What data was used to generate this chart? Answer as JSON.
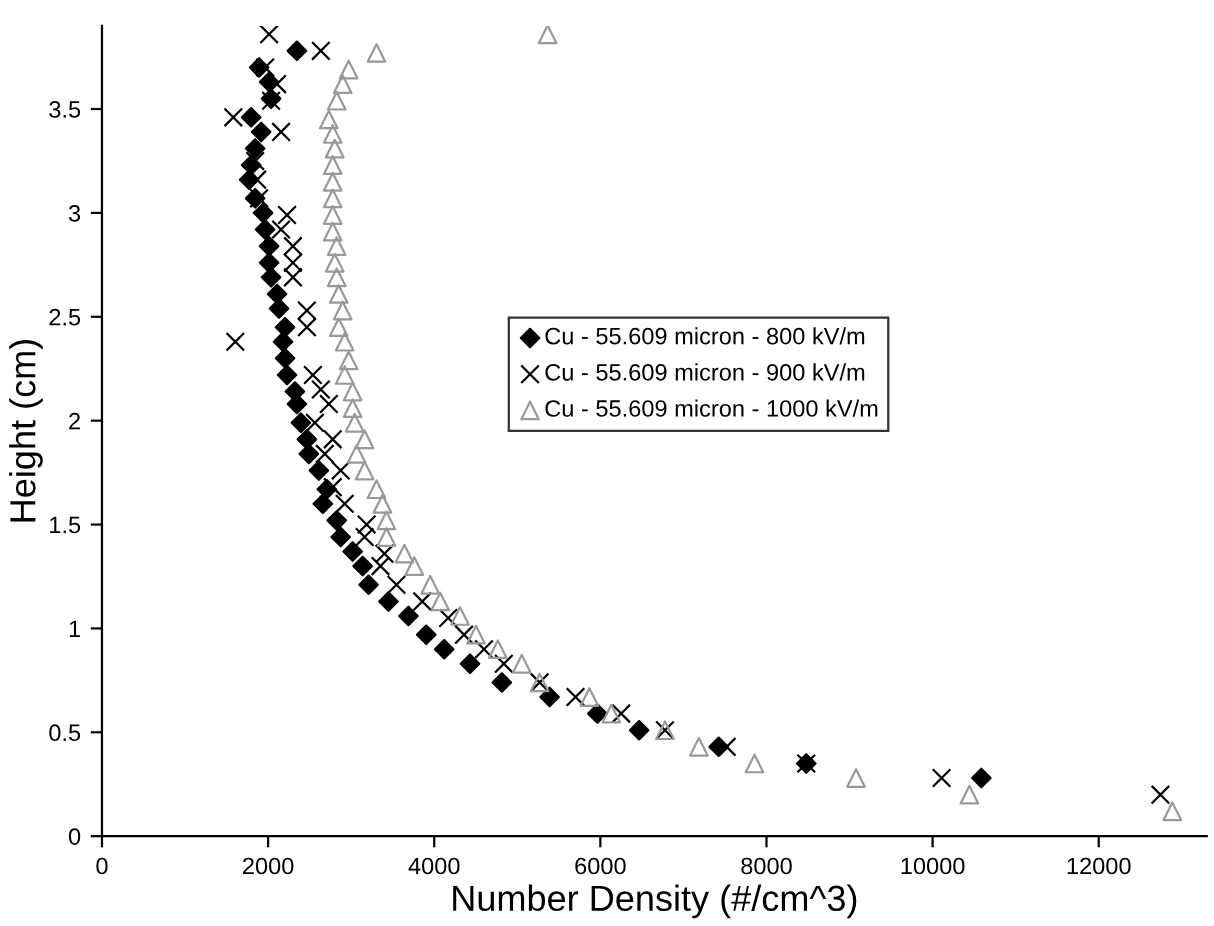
{
  "chart_data": {
    "type": "scatter",
    "xlabel": "Number Density (#/cm^3)",
    "ylabel": "Height (cm)",
    "xlim": [
      0,
      13300
    ],
    "xticks": [
      0,
      2000,
      4000,
      6000,
      8000,
      10000,
      12000
    ],
    "ylim": [
      0,
      3.9
    ],
    "yticks": [
      0,
      0.5,
      1,
      1.5,
      2,
      2.5,
      3,
      3.5
    ],
    "grid": false,
    "legend": "center",
    "series": [
      {
        "name": "Cu - 55.609 micron - 800 kV/m",
        "color": "#000000",
        "marker": "diamond",
        "x": [
          2347,
          1892,
          2012,
          2036,
          1796,
          1916,
          1844,
          1796,
          1772,
          1844,
          1940,
          1964,
          2012,
          2012,
          2036,
          2108,
          2132,
          2204,
          2180,
          2204,
          2228,
          2323,
          2347,
          2395,
          2467,
          2491,
          2611,
          2707,
          2659,
          2826,
          2874,
          3018,
          3138,
          3210,
          3449,
          3689,
          3904,
          4120,
          4431,
          4814,
          5389,
          5964,
          6467,
          7425,
          8479,
          10587
        ],
        "values": [
          3.78,
          3.7,
          3.63,
          3.55,
          3.46,
          3.39,
          3.31,
          3.23,
          3.16,
          3.07,
          3.0,
          2.92,
          2.84,
          2.76,
          2.69,
          2.61,
          2.54,
          2.45,
          2.38,
          2.3,
          2.22,
          2.14,
          2.08,
          1.99,
          1.91,
          1.84,
          1.76,
          1.67,
          1.6,
          1.52,
          1.44,
          1.37,
          1.3,
          1.21,
          1.13,
          1.06,
          0.97,
          0.9,
          0.83,
          0.74,
          0.67,
          0.59,
          0.51,
          0.43,
          0.35,
          0.28
        ]
      },
      {
        "name": "Cu - 55.609 micron - 900 kV/m",
        "color": "#000000",
        "marker": "cross",
        "x": [
          2012,
          2635,
          1964,
          2108,
          2036,
          1581,
          2156,
          1844,
          1868,
          1892,
          2228,
          2156,
          2299,
          2299,
          2299,
          2467,
          2467,
          1605,
          2539,
          2635,
          2731,
          2563,
          2778,
          2683,
          2874,
          2778,
          2922,
          3186,
          3162,
          3401,
          3353,
          3545,
          3856,
          4168,
          4359,
          4599,
          4838,
          5269,
          5701,
          6251,
          6778,
          7521,
          8479,
          10108,
          12743
        ],
        "values": [
          3.86,
          3.78,
          3.7,
          3.62,
          3.54,
          3.46,
          3.39,
          3.25,
          3.16,
          3.07,
          2.99,
          2.92,
          2.84,
          2.76,
          2.69,
          2.53,
          2.45,
          2.38,
          2.22,
          2.15,
          2.08,
          1.99,
          1.91,
          1.84,
          1.76,
          1.68,
          1.6,
          1.5,
          1.44,
          1.36,
          1.3,
          1.21,
          1.13,
          1.05,
          0.97,
          0.9,
          0.83,
          0.74,
          0.67,
          0.59,
          0.51,
          0.43,
          0.35,
          0.28,
          0.2
        ]
      },
      {
        "name": "Cu - 55.609 micron - 1000 kV/m",
        "color": "#999999",
        "marker": "triangle",
        "x": [
          5365,
          3305,
          2970,
          2898,
          2826,
          2731,
          2778,
          2802,
          2778,
          2778,
          2778,
          2778,
          2778,
          2826,
          2802,
          2826,
          2850,
          2898,
          2850,
          2922,
          2970,
          2922,
          3018,
          3018,
          3042,
          3162,
          3066,
          3162,
          3305,
          3377,
          3425,
          3425,
          3641,
          3760,
          3952,
          4072,
          4311,
          4503,
          4766,
          5054,
          5269,
          5868,
          6132,
          6778,
          7186,
          7856,
          9078,
          10443,
          12886
        ],
        "values": [
          3.86,
          3.77,
          3.69,
          3.62,
          3.54,
          3.45,
          3.38,
          3.31,
          3.23,
          3.15,
          3.07,
          2.99,
          2.91,
          2.84,
          2.76,
          2.69,
          2.61,
          2.53,
          2.45,
          2.38,
          2.29,
          2.22,
          2.14,
          2.06,
          1.99,
          1.91,
          1.84,
          1.76,
          1.67,
          1.6,
          1.52,
          1.44,
          1.36,
          1.3,
          1.21,
          1.13,
          1.06,
          0.97,
          0.9,
          0.83,
          0.74,
          0.67,
          0.59,
          0.51,
          0.43,
          0.35,
          0.28,
          0.2,
          0.12
        ]
      }
    ]
  }
}
